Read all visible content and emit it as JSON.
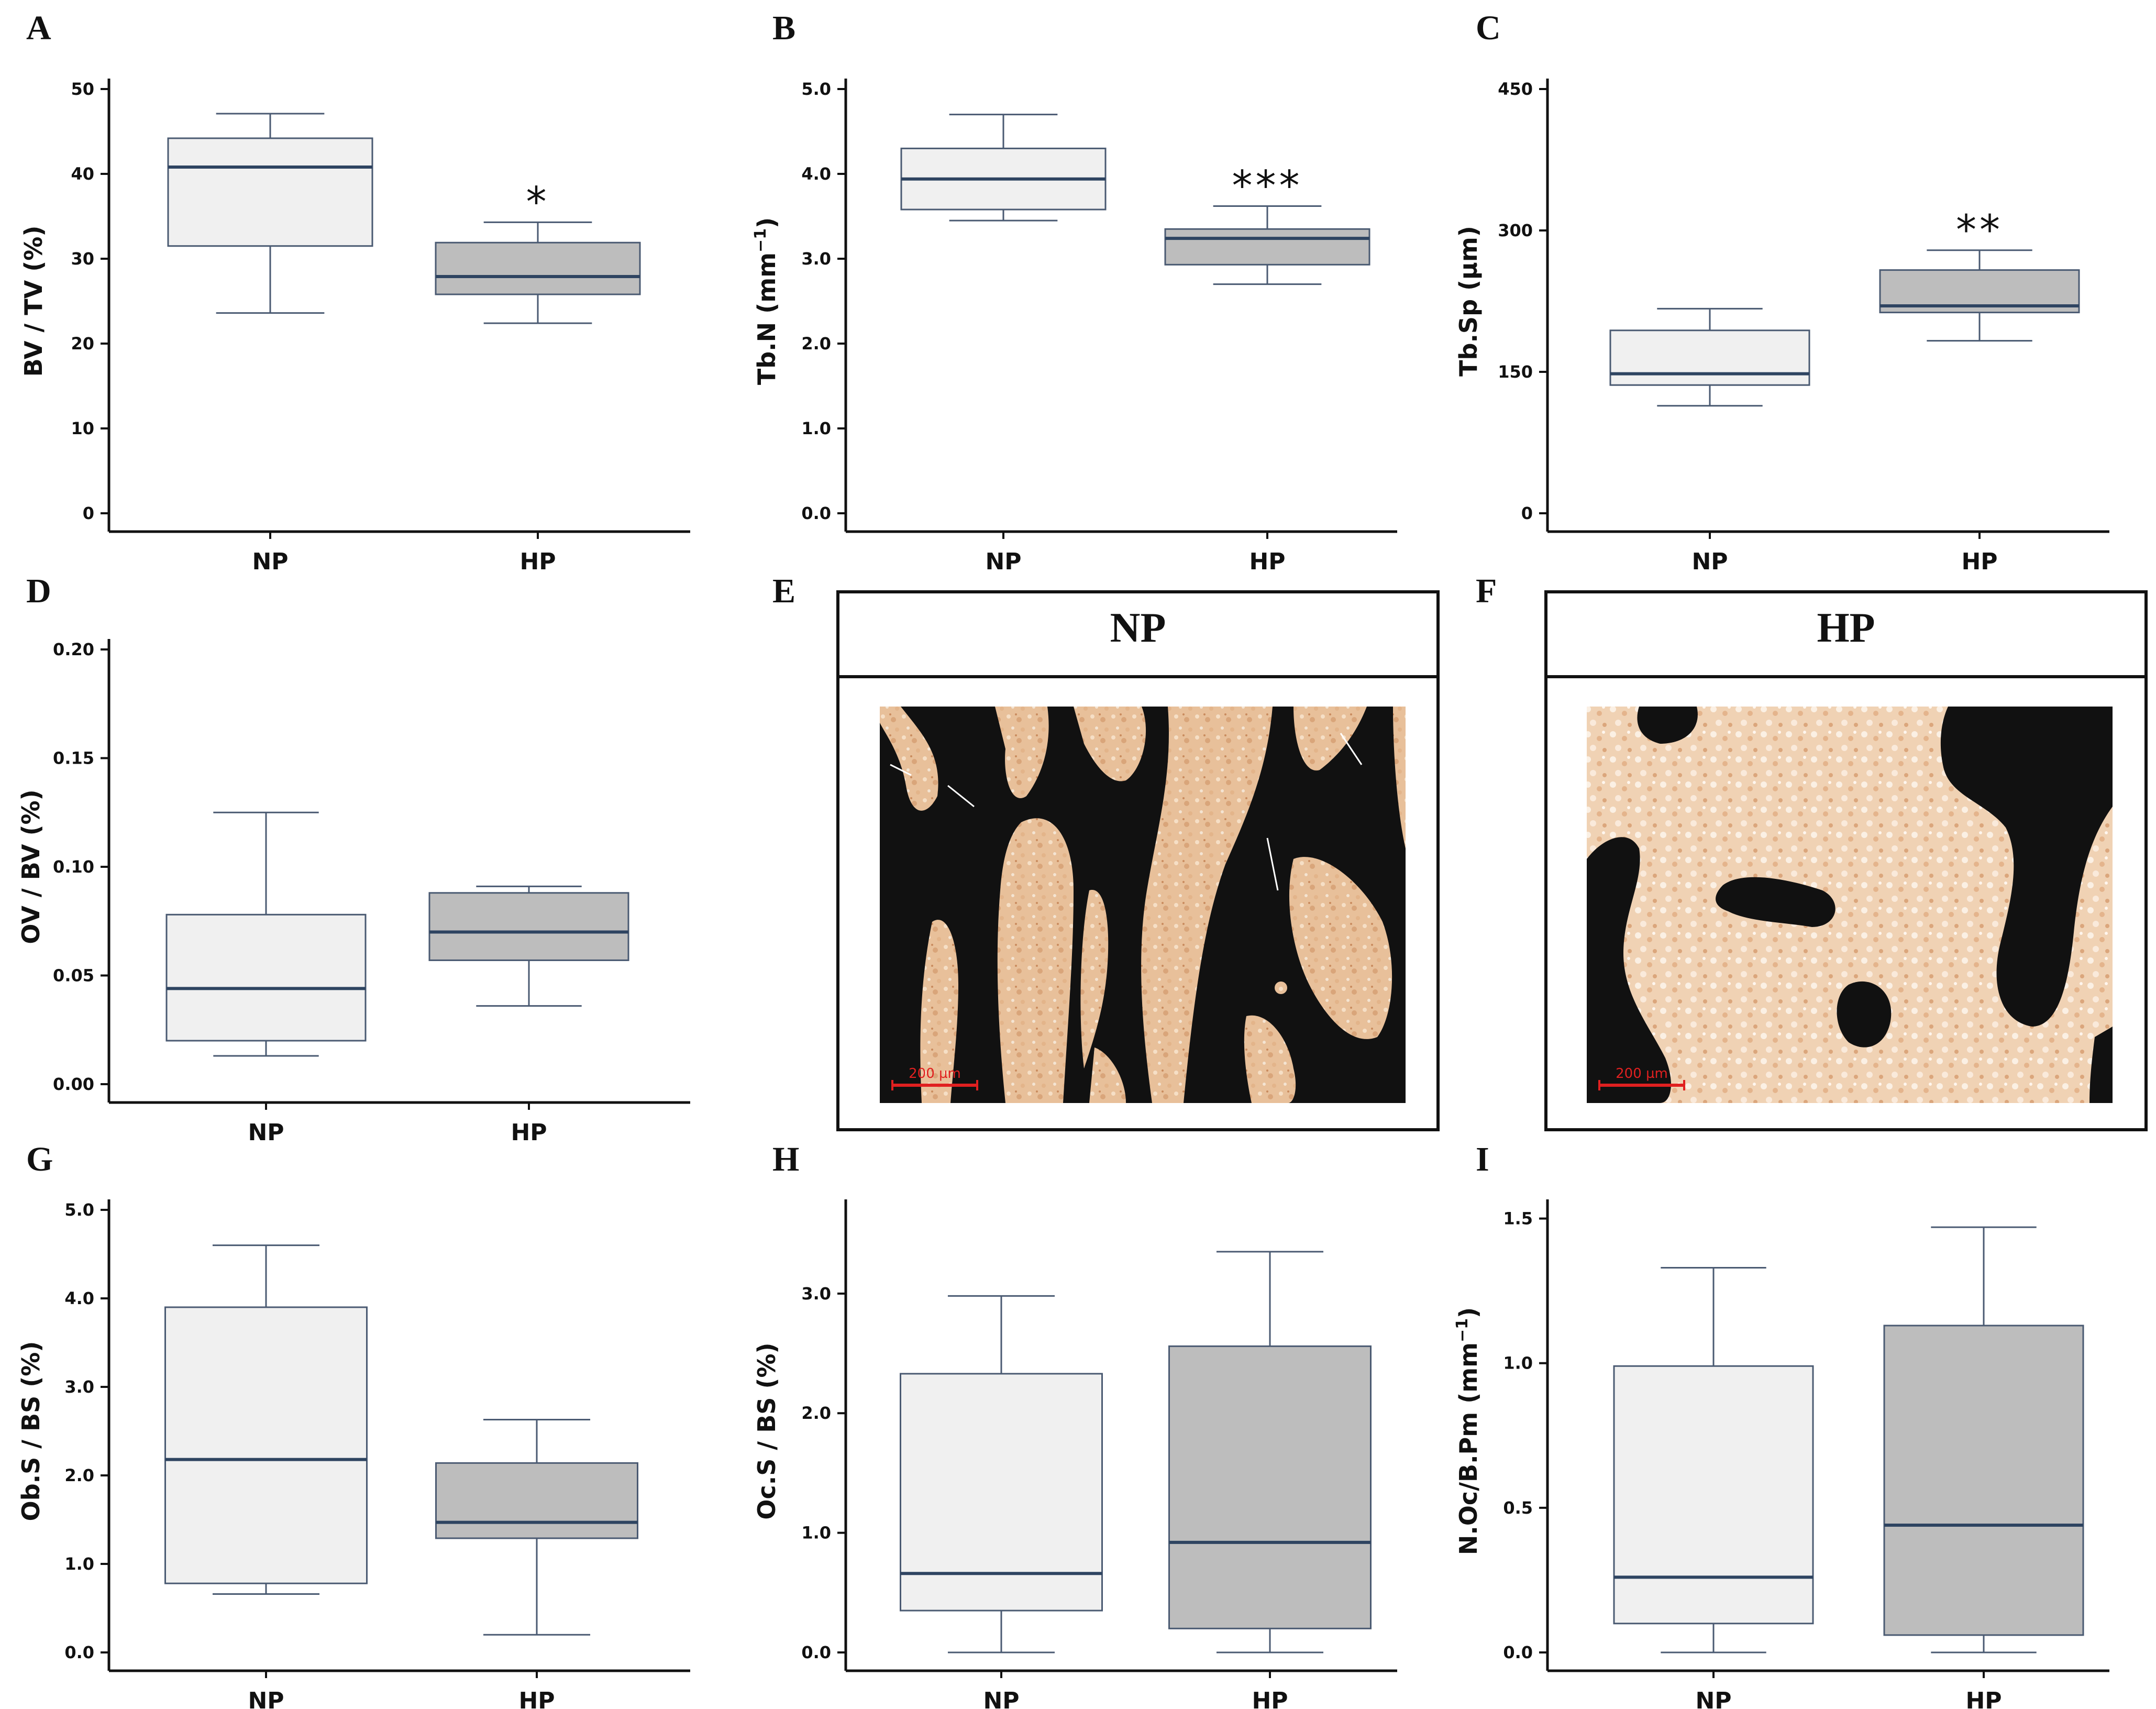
{
  "colors": {
    "np_fill": "#f0f0f0",
    "hp_fill": "#bdbdbd",
    "box_stroke": "#4a5a72",
    "median": "#2e4461",
    "axis": "#111111"
  },
  "chart_data": [
    {
      "id": "A",
      "type": "boxplot",
      "ylabel": "BV / TV (%)",
      "ylabel_sup": "",
      "ylim": [
        0,
        50
      ],
      "yticks": [
        0,
        10,
        20,
        30,
        40,
        50
      ],
      "ytick_labels": [
        "0",
        "10",
        "20",
        "30",
        "40",
        "50"
      ],
      "categories": [
        "NP",
        "HP"
      ],
      "boxes": [
        {
          "min": 23.6,
          "q1": 31.5,
          "median": 40.8,
          "q3": 44.2,
          "max": 47.1
        },
        {
          "min": 22.4,
          "q1": 25.8,
          "median": 27.9,
          "q3": 31.9,
          "max": 34.3
        }
      ],
      "significance": [
        "",
        "*"
      ]
    },
    {
      "id": "B",
      "type": "boxplot",
      "ylabel": "Tb.N (mm",
      "ylabel_sup": "−1",
      "ylabel_end": ")",
      "ylim": [
        0,
        5
      ],
      "yticks": [
        0,
        1,
        2,
        3,
        4,
        5
      ],
      "ytick_labels": [
        "0.0",
        "1.0",
        "2.0",
        "3.0",
        "4.0",
        "5.0"
      ],
      "categories": [
        "NP",
        "HP"
      ],
      "boxes": [
        {
          "min": 3.45,
          "q1": 3.58,
          "median": 3.94,
          "q3": 4.3,
          "max": 4.7
        },
        {
          "min": 2.7,
          "q1": 2.93,
          "median": 3.24,
          "q3": 3.35,
          "max": 3.62
        }
      ],
      "significance": [
        "",
        "***"
      ]
    },
    {
      "id": "C",
      "type": "boxplot",
      "ylabel": "Tb.Sp (μm)",
      "ylabel_sup": "",
      "ylim": [
        0,
        450
      ],
      "yticks": [
        0,
        150,
        300,
        450
      ],
      "ytick_labels": [
        "0",
        "150",
        "300",
        "450"
      ],
      "categories": [
        "NP",
        "HP"
      ],
      "boxes": [
        {
          "min": 114,
          "q1": 136,
          "median": 148,
          "q3": 194,
          "max": 217
        },
        {
          "min": 183,
          "q1": 213,
          "median": 220,
          "q3": 258,
          "max": 279
        }
      ],
      "significance": [
        "",
        "**"
      ]
    },
    {
      "id": "D",
      "type": "boxplot",
      "ylabel": "OV / BV (%)",
      "ylabel_sup": "",
      "ylim": [
        0,
        0.2
      ],
      "yticks": [
        0,
        0.05,
        0.1,
        0.15,
        0.2
      ],
      "ytick_labels": [
        "0.00",
        "0.05",
        "0.10",
        "0.15",
        "0.20"
      ],
      "categories": [
        "NP",
        "HP"
      ],
      "boxes": [
        {
          "min": 0.013,
          "q1": 0.02,
          "median": 0.044,
          "q3": 0.078,
          "max": 0.125
        },
        {
          "min": 0.036,
          "q1": 0.057,
          "median": 0.07,
          "q3": 0.088,
          "max": 0.091
        }
      ],
      "significance": [
        "",
        ""
      ]
    },
    {
      "id": "G",
      "type": "boxplot",
      "ylabel": "Ob.S / BS (%)",
      "ylabel_sup": "",
      "ylim": [
        0,
        5
      ],
      "yticks": [
        0,
        1,
        2,
        3,
        4,
        5
      ],
      "ytick_labels": [
        "0.0",
        "1.0",
        "2.0",
        "3.0",
        "4.0",
        "5.0"
      ],
      "categories": [
        "NP",
        "HP"
      ],
      "boxes": [
        {
          "min": 0.66,
          "q1": 0.78,
          "median": 2.18,
          "q3": 3.9,
          "max": 4.6
        },
        {
          "min": 0.2,
          "q1": 1.29,
          "median": 1.47,
          "q3": 2.14,
          "max": 2.63
        }
      ],
      "significance": [
        "",
        ""
      ]
    },
    {
      "id": "H",
      "type": "boxplot",
      "ylabel": "Oc.S / BS (%)",
      "ylabel_sup": "",
      "ylim": [
        0,
        3.7
      ],
      "yticks": [
        0,
        1,
        2,
        3
      ],
      "ytick_labels": [
        "0.0",
        "1.0",
        "2.0",
        "3.0"
      ],
      "categories": [
        "NP",
        "HP"
      ],
      "boxes": [
        {
          "min": 0,
          "q1": 0.35,
          "median": 0.66,
          "q3": 2.33,
          "max": 2.98
        },
        {
          "min": 0,
          "q1": 0.2,
          "median": 0.92,
          "q3": 2.56,
          "max": 3.35
        }
      ],
      "significance": [
        "",
        ""
      ]
    },
    {
      "id": "I",
      "type": "boxplot",
      "ylabel": "N.Oc/B.Pm (mm",
      "ylabel_sup": "−1",
      "ylabel_end": ")",
      "ylim": [
        0,
        1.53
      ],
      "yticks": [
        0,
        0.5,
        1,
        1.5
      ],
      "ytick_labels": [
        "0.0",
        "0.5",
        "1.0",
        "1.5"
      ],
      "categories": [
        "NP",
        "HP"
      ],
      "boxes": [
        {
          "min": 0,
          "q1": 0.1,
          "median": 0.26,
          "q3": 0.99,
          "max": 1.33
        },
        {
          "min": 0,
          "q1": 0.06,
          "median": 0.44,
          "q3": 1.13,
          "max": 1.47
        }
      ],
      "significance": [
        "",
        ""
      ]
    }
  ],
  "histology": [
    {
      "id": "E",
      "title": "NP",
      "scale_label": "200 µm"
    },
    {
      "id": "F",
      "title": "HP",
      "scale_label": "200 µm"
    }
  ]
}
